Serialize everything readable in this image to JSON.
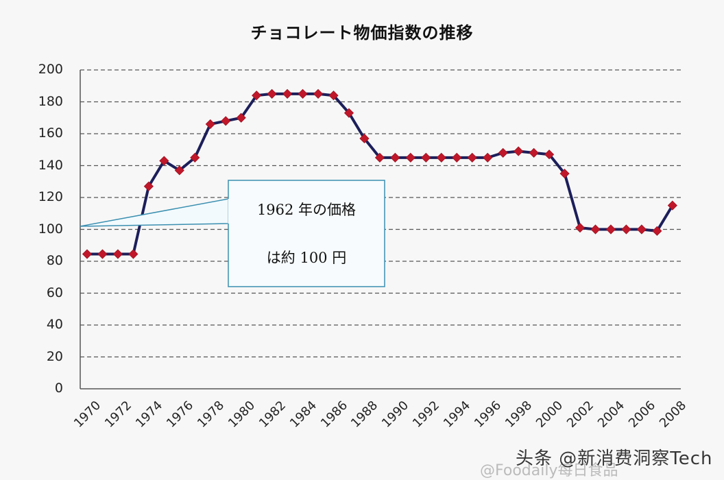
{
  "chart_data": {
    "type": "line",
    "title": "チョコレート物価指数の推移",
    "xlabel": "",
    "ylabel": "",
    "ylim": [
      0,
      200
    ],
    "yticks": [
      0,
      20,
      40,
      60,
      80,
      100,
      120,
      140,
      160,
      180,
      200
    ],
    "xtick_labels": [
      "1970",
      "1972",
      "1974",
      "1976",
      "1978",
      "1980",
      "1982",
      "1984",
      "1986",
      "1988",
      "1990",
      "1992",
      "1994",
      "1996",
      "1998",
      "2000",
      "2002",
      "2004",
      "2006",
      "2008"
    ],
    "grid": "horizontal dashed",
    "legend": "none",
    "x": [
      1970,
      1971,
      1972,
      1973,
      1974,
      1975,
      1976,
      1977,
      1978,
      1979,
      1980,
      1981,
      1982,
      1983,
      1984,
      1985,
      1986,
      1987,
      1988,
      1989,
      1990,
      1991,
      1992,
      1993,
      1994,
      1995,
      1996,
      1997,
      1998,
      1999,
      2000,
      2001,
      2002,
      2003,
      2004,
      2005,
      2006,
      2007,
      2008
    ],
    "series": [
      {
        "name": "チョコレート物価指数",
        "line_color": "#1c1f5a",
        "marker": "diamond",
        "marker_color": "#c0182a",
        "values": [
          84.5,
          84.5,
          84.5,
          84.5,
          127,
          143,
          137,
          145,
          166,
          168,
          170,
          184,
          185,
          185,
          185,
          185,
          184,
          173,
          157,
          145,
          145,
          145,
          145,
          145,
          145,
          145,
          145,
          148,
          149,
          148,
          147,
          135,
          101,
          100,
          100,
          100,
          100,
          99,
          115
        ]
      }
    ],
    "annotations": [
      {
        "text_line1": "1962年の価格",
        "text_line2": "は約100円",
        "points_to_y": 102
      }
    ]
  },
  "callout": {
    "line1": "1962 年の価格",
    "line2": "は約 100 円"
  },
  "watermark": {
    "main": "头条 @新消费洞察Tech",
    "secondary": "@Foodaily每日食品"
  }
}
